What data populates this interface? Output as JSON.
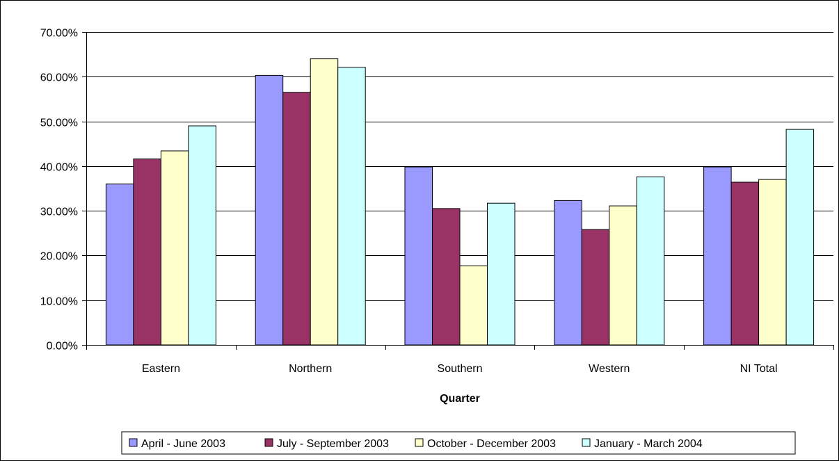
{
  "chart_data": {
    "type": "bar",
    "title": "",
    "xlabel": "Quarter",
    "ylabel": "",
    "categories": [
      "Eastern",
      "Northern",
      "Southern",
      "Western",
      "NI Total"
    ],
    "ylim": [
      0,
      0.7
    ],
    "y_ticks": [
      0,
      0.1,
      0.2,
      0.3,
      0.4,
      0.5,
      0.6,
      0.7
    ],
    "y_tick_labels": [
      "0.00%",
      "10.00%",
      "20.00%",
      "30.00%",
      "40.00%",
      "50.00%",
      "60.00%",
      "70.00%"
    ],
    "grid": true,
    "legend_position": "bottom",
    "series": [
      {
        "name": "April - June 2003",
        "color": "#9999ff",
        "values": [
          0.36,
          0.603,
          0.398,
          0.323,
          0.398
        ]
      },
      {
        "name": "July - September 2003",
        "color": "#993366",
        "values": [
          0.416,
          0.565,
          0.305,
          0.258,
          0.364
        ]
      },
      {
        "name": "October - December 2003",
        "color": "#ffffcc",
        "values": [
          0.434,
          0.64,
          0.177,
          0.311,
          0.37
        ]
      },
      {
        "name": "January - March 2004",
        "color": "#ccffff",
        "values": [
          0.49,
          0.621,
          0.317,
          0.376,
          0.482
        ]
      }
    ]
  }
}
